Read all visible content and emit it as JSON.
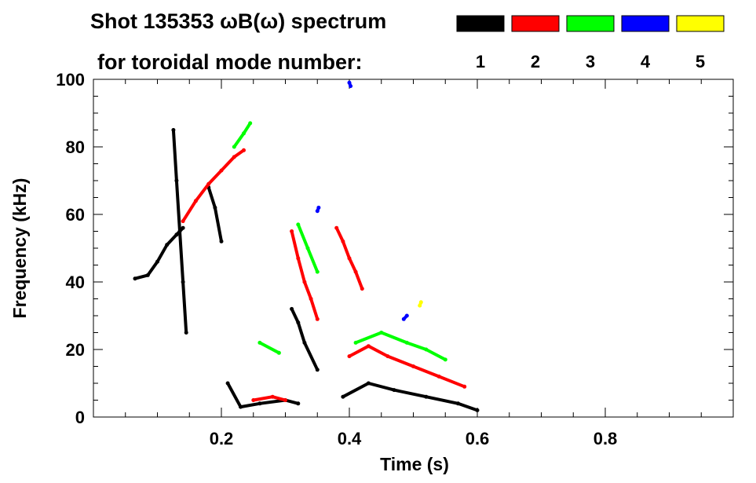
{
  "chart_data": {
    "type": "scatter",
    "title_line1": "Shot 135353 ωB(ω) spectrum",
    "title_line2": "for toroidal mode number:",
    "xlabel": "Time (s)",
    "ylabel": "Frequency (kHz)",
    "xlim": [
      0.0,
      1.0
    ],
    "ylim": [
      0,
      100
    ],
    "xticks": [
      "0.2",
      "0.4",
      "0.6",
      "0.8"
    ],
    "xtick_values": [
      0.2,
      0.4,
      0.6,
      0.8
    ],
    "yticks": [
      "0",
      "20",
      "40",
      "60",
      "80",
      "100"
    ],
    "ytick_values": [
      0,
      20,
      40,
      60,
      80,
      100
    ],
    "grid": false,
    "legend_position": "top-right",
    "series": [
      {
        "name": "1",
        "color": "#000000",
        "segments": [
          [
            [
              0.065,
              41
            ],
            [
              0.085,
              42
            ],
            [
              0.1,
              46
            ],
            [
              0.115,
              51
            ],
            [
              0.13,
              54
            ],
            [
              0.14,
              56
            ]
          ],
          [
            [
              0.125,
              85
            ],
            [
              0.13,
              70
            ],
            [
              0.135,
              55
            ],
            [
              0.14,
              40
            ],
            [
              0.145,
              25
            ]
          ],
          [
            [
              0.18,
              68
            ],
            [
              0.19,
              62
            ],
            [
              0.2,
              52
            ]
          ],
          [
            [
              0.21,
              10
            ],
            [
              0.23,
              3
            ],
            [
              0.26,
              4
            ],
            [
              0.3,
              5
            ],
            [
              0.32,
              4
            ]
          ],
          [
            [
              0.31,
              32
            ],
            [
              0.32,
              28
            ],
            [
              0.33,
              22
            ],
            [
              0.35,
              14
            ]
          ],
          [
            [
              0.39,
              6
            ],
            [
              0.43,
              10
            ],
            [
              0.47,
              8
            ],
            [
              0.52,
              6
            ],
            [
              0.57,
              4
            ],
            [
              0.6,
              2
            ]
          ]
        ]
      },
      {
        "name": "2",
        "color": "#ff0000",
        "segments": [
          [
            [
              0.14,
              58
            ],
            [
              0.16,
              64
            ],
            [
              0.18,
              69
            ],
            [
              0.2,
              73
            ],
            [
              0.22,
              77
            ],
            [
              0.235,
              79
            ]
          ],
          [
            [
              0.31,
              55
            ],
            [
              0.32,
              47
            ],
            [
              0.33,
              40
            ],
            [
              0.34,
              35
            ],
            [
              0.35,
              29
            ]
          ],
          [
            [
              0.38,
              56
            ],
            [
              0.39,
              52
            ],
            [
              0.4,
              47
            ],
            [
              0.41,
              43
            ],
            [
              0.42,
              38
            ]
          ],
          [
            [
              0.4,
              18
            ],
            [
              0.43,
              21
            ],
            [
              0.46,
              18
            ],
            [
              0.5,
              15
            ],
            [
              0.54,
              12
            ],
            [
              0.58,
              9
            ]
          ],
          [
            [
              0.25,
              5
            ],
            [
              0.28,
              6
            ],
            [
              0.3,
              5
            ]
          ]
        ]
      },
      {
        "name": "3",
        "color": "#00ff00",
        "segments": [
          [
            [
              0.22,
              80
            ],
            [
              0.235,
              84
            ],
            [
              0.245,
              87
            ]
          ],
          [
            [
              0.32,
              57
            ],
            [
              0.335,
              50
            ],
            [
              0.35,
              43
            ]
          ],
          [
            [
              0.41,
              22
            ],
            [
              0.45,
              25
            ],
            [
              0.49,
              22
            ],
            [
              0.52,
              20
            ],
            [
              0.55,
              17
            ]
          ],
          [
            [
              0.26,
              22
            ],
            [
              0.29,
              19
            ]
          ]
        ]
      },
      {
        "name": "4",
        "color": "#0000ff",
        "segments": [
          [
            [
              0.35,
              61
            ],
            [
              0.352,
              62
            ]
          ],
          [
            [
              0.485,
              29
            ],
            [
              0.49,
              30
            ]
          ],
          [
            [
              0.4,
              99
            ],
            [
              0.402,
              98
            ]
          ]
        ]
      },
      {
        "name": "5",
        "color": "#ffff00",
        "segments": [
          [
            [
              0.51,
              33
            ],
            [
              0.512,
              34
            ]
          ]
        ]
      }
    ]
  }
}
